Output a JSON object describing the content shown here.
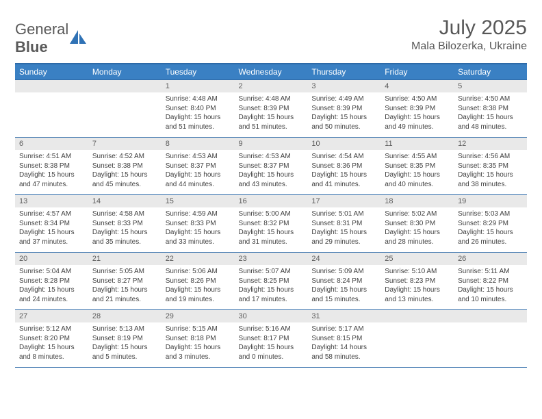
{
  "logo": {
    "text1": "General",
    "text2": "Blue",
    "icon_color": "#2f72b5"
  },
  "title": "July 2025",
  "location": "Mala Bilozerka, Ukraine",
  "weekday_header_bg": "#3a80c3",
  "weekday_header_fg": "#ffffff",
  "border_color": "#2d6aa8",
  "daynum_bg": "#e9e9e9",
  "weekdays": [
    "Sunday",
    "Monday",
    "Tuesday",
    "Wednesday",
    "Thursday",
    "Friday",
    "Saturday"
  ],
  "weeks": [
    [
      null,
      null,
      {
        "n": "1",
        "sr": "4:48 AM",
        "ss": "8:40 PM",
        "dl": "15 hours and 51 minutes."
      },
      {
        "n": "2",
        "sr": "4:48 AM",
        "ss": "8:39 PM",
        "dl": "15 hours and 51 minutes."
      },
      {
        "n": "3",
        "sr": "4:49 AM",
        "ss": "8:39 PM",
        "dl": "15 hours and 50 minutes."
      },
      {
        "n": "4",
        "sr": "4:50 AM",
        "ss": "8:39 PM",
        "dl": "15 hours and 49 minutes."
      },
      {
        "n": "5",
        "sr": "4:50 AM",
        "ss": "8:38 PM",
        "dl": "15 hours and 48 minutes."
      }
    ],
    [
      {
        "n": "6",
        "sr": "4:51 AM",
        "ss": "8:38 PM",
        "dl": "15 hours and 47 minutes."
      },
      {
        "n": "7",
        "sr": "4:52 AM",
        "ss": "8:38 PM",
        "dl": "15 hours and 45 minutes."
      },
      {
        "n": "8",
        "sr": "4:53 AM",
        "ss": "8:37 PM",
        "dl": "15 hours and 44 minutes."
      },
      {
        "n": "9",
        "sr": "4:53 AM",
        "ss": "8:37 PM",
        "dl": "15 hours and 43 minutes."
      },
      {
        "n": "10",
        "sr": "4:54 AM",
        "ss": "8:36 PM",
        "dl": "15 hours and 41 minutes."
      },
      {
        "n": "11",
        "sr": "4:55 AM",
        "ss": "8:35 PM",
        "dl": "15 hours and 40 minutes."
      },
      {
        "n": "12",
        "sr": "4:56 AM",
        "ss": "8:35 PM",
        "dl": "15 hours and 38 minutes."
      }
    ],
    [
      {
        "n": "13",
        "sr": "4:57 AM",
        "ss": "8:34 PM",
        "dl": "15 hours and 37 minutes."
      },
      {
        "n": "14",
        "sr": "4:58 AM",
        "ss": "8:33 PM",
        "dl": "15 hours and 35 minutes."
      },
      {
        "n": "15",
        "sr": "4:59 AM",
        "ss": "8:33 PM",
        "dl": "15 hours and 33 minutes."
      },
      {
        "n": "16",
        "sr": "5:00 AM",
        "ss": "8:32 PM",
        "dl": "15 hours and 31 minutes."
      },
      {
        "n": "17",
        "sr": "5:01 AM",
        "ss": "8:31 PM",
        "dl": "15 hours and 29 minutes."
      },
      {
        "n": "18",
        "sr": "5:02 AM",
        "ss": "8:30 PM",
        "dl": "15 hours and 28 minutes."
      },
      {
        "n": "19",
        "sr": "5:03 AM",
        "ss": "8:29 PM",
        "dl": "15 hours and 26 minutes."
      }
    ],
    [
      {
        "n": "20",
        "sr": "5:04 AM",
        "ss": "8:28 PM",
        "dl": "15 hours and 24 minutes."
      },
      {
        "n": "21",
        "sr": "5:05 AM",
        "ss": "8:27 PM",
        "dl": "15 hours and 21 minutes."
      },
      {
        "n": "22",
        "sr": "5:06 AM",
        "ss": "8:26 PM",
        "dl": "15 hours and 19 minutes."
      },
      {
        "n": "23",
        "sr": "5:07 AM",
        "ss": "8:25 PM",
        "dl": "15 hours and 17 minutes."
      },
      {
        "n": "24",
        "sr": "5:09 AM",
        "ss": "8:24 PM",
        "dl": "15 hours and 15 minutes."
      },
      {
        "n": "25",
        "sr": "5:10 AM",
        "ss": "8:23 PM",
        "dl": "15 hours and 13 minutes."
      },
      {
        "n": "26",
        "sr": "5:11 AM",
        "ss": "8:22 PM",
        "dl": "15 hours and 10 minutes."
      }
    ],
    [
      {
        "n": "27",
        "sr": "5:12 AM",
        "ss": "8:20 PM",
        "dl": "15 hours and 8 minutes."
      },
      {
        "n": "28",
        "sr": "5:13 AM",
        "ss": "8:19 PM",
        "dl": "15 hours and 5 minutes."
      },
      {
        "n": "29",
        "sr": "5:15 AM",
        "ss": "8:18 PM",
        "dl": "15 hours and 3 minutes."
      },
      {
        "n": "30",
        "sr": "5:16 AM",
        "ss": "8:17 PM",
        "dl": "15 hours and 0 minutes."
      },
      {
        "n": "31",
        "sr": "5:17 AM",
        "ss": "8:15 PM",
        "dl": "14 hours and 58 minutes."
      },
      null,
      null
    ]
  ],
  "labels": {
    "sunrise": "Sunrise:",
    "sunset": "Sunset:",
    "daylight": "Daylight:"
  }
}
